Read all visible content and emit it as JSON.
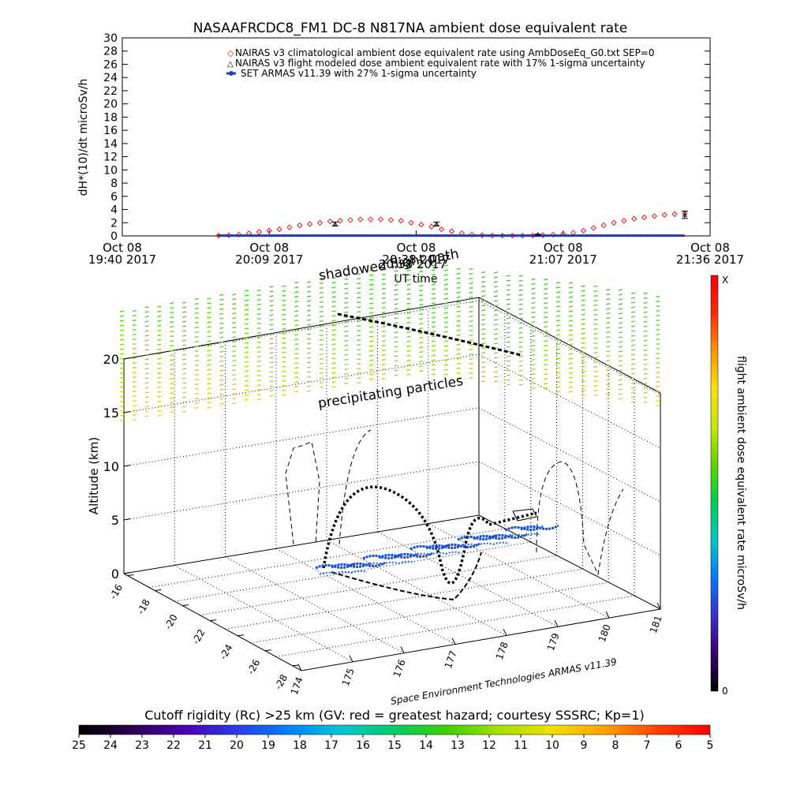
{
  "chart_data": [
    {
      "type": "line",
      "title": "NASAAFRCDC8_FM1 DC-8    N817NA ambient dose equivalent rate",
      "ylabel": "dH*(10)/dt microSv/h",
      "xlabel": "UT time",
      "ylim": [
        0,
        30
      ],
      "y_ticks": [
        "0",
        "2",
        "4",
        "6",
        "8",
        "10",
        "12",
        "14",
        "16",
        "18",
        "20",
        "22",
        "24",
        "26",
        "28",
        "30"
      ],
      "x_ticks": [
        {
          "top": "Oct 08",
          "bottom": "19:40 2017",
          "t": 0
        },
        {
          "top": "Oct 08",
          "bottom": "20:09 2017",
          "t": 29
        },
        {
          "top": "Oct 08",
          "bottom": "20:38 2017",
          "t": 58
        },
        {
          "top": "Oct 08",
          "bottom": "21:07 2017",
          "t": 87
        },
        {
          "top": "Oct 08",
          "bottom": "21:36 2017",
          "t": 116
        }
      ],
      "legend_position": "top-right",
      "series": [
        {
          "name": "NAIRAS v3 climatological ambient dose equivalent rate using AmbDoseEq_G0.txt SEP=0",
          "color": "#dd2222",
          "marker": "diamond",
          "x": [
            19,
            21,
            23,
            25,
            27,
            29,
            31,
            33,
            35,
            37,
            39,
            41,
            43,
            45,
            47,
            49,
            51,
            53,
            55,
            57,
            59,
            61,
            63,
            65,
            67,
            69,
            71,
            73,
            75,
            77,
            79,
            81,
            83,
            85,
            87,
            89,
            91,
            93,
            95,
            97,
            99,
            101,
            103,
            105,
            107,
            109,
            111
          ],
          "y": [
            0.05,
            0.1,
            0.2,
            0.4,
            0.6,
            0.8,
            1.0,
            1.3,
            1.6,
            1.8,
            2.0,
            2.2,
            2.3,
            2.4,
            2.5,
            2.5,
            2.5,
            2.4,
            2.3,
            2.0,
            1.7,
            1.4,
            1.0,
            0.7,
            0.4,
            0.2,
            0.1,
            0.05,
            0.05,
            0.05,
            0.05,
            0.05,
            0.1,
            0.2,
            0.3,
            0.5,
            0.8,
            1.2,
            1.6,
            2.0,
            2.3,
            2.6,
            2.8,
            3.0,
            3.2,
            3.3,
            3.4
          ]
        },
        {
          "name": "NAIRAS v3 flight modeled dose ambient equivalent rate with 17% 1-sigma uncertainty",
          "color": "#000000",
          "marker": "triangle",
          "x": [
            42,
            62,
            82,
            111
          ],
          "y": [
            1.8,
            1.8,
            0.2,
            3.2
          ],
          "err": [
            0.3,
            0.3,
            0.05,
            0.55
          ]
        },
        {
          "name": "SET ARMAS v11.39 with 27% 1-sigma uncertainty",
          "color": "#1a3fbf",
          "marker": "circle",
          "x_range": [
            19,
            111
          ],
          "y_const": 0.05
        }
      ]
    },
    {
      "type": "scatter",
      "title": "",
      "zlabel": "Altitude (km)",
      "z_ticks": [
        "0",
        "5",
        "10",
        "15",
        "20"
      ],
      "lat_ticks": [
        "-16",
        "-18",
        "-20",
        "-22",
        "-24",
        "-26",
        "-28"
      ],
      "lon_ticks": [
        "174",
        "175",
        "176",
        "177",
        "178",
        "179",
        "180",
        "181"
      ],
      "annotations": {
        "upper_label": "shadowed flight path",
        "middle_label": "precipitating particles",
        "overlap_text": "20:38 2017"
      },
      "credit": "Space Environment Technologies ARMAS v11.39",
      "colorbar": {
        "label": "flight ambient dose equivalent rate microSv/h",
        "top": "X",
        "bottom": "0",
        "colors": [
          "#000000",
          "#3b0070",
          "#3a2fd0",
          "#0078ff",
          "#00c8c8",
          "#00cc50",
          "#5fd400",
          "#c8e600",
          "#ffe000",
          "#ff9500",
          "#ff2a00",
          "#ff0000"
        ]
      }
    },
    {
      "type": "heatmap",
      "title": "Cutoff rigidity (Rc) >25 km (GV: red = greatest hazard; courtesy SSSRC; Kp=1)",
      "ticks": [
        "25",
        "24",
        "23",
        "22",
        "21",
        "20",
        "19",
        "18",
        "17",
        "16",
        "15",
        "14",
        "13",
        "12",
        "11",
        "10",
        "9",
        "8",
        "7",
        "6",
        "5"
      ],
      "colors": [
        "#000000",
        "#2a004d",
        "#4c00b3",
        "#2a3be6",
        "#0080ff",
        "#00c8d0",
        "#00cc66",
        "#3fd000",
        "#a6e000",
        "#f0e000",
        "#ffa000",
        "#ff4000",
        "#ff0000"
      ]
    }
  ]
}
